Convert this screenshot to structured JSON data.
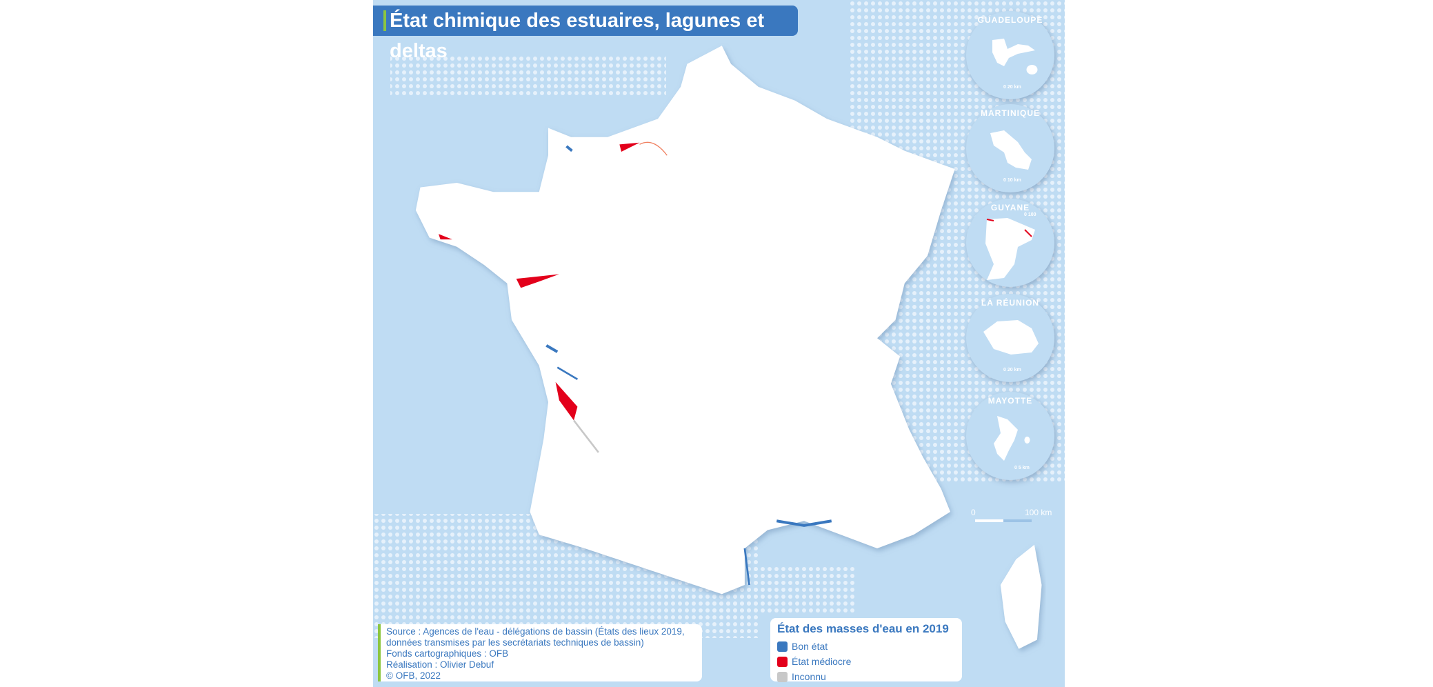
{
  "title": "État chimique des estuaires, lagunes et deltas",
  "insets": [
    {
      "name": "GUADELOUPE",
      "scale": "0    20 km"
    },
    {
      "name": "MARTINIQUE",
      "scale": "0    10 km"
    },
    {
      "name": "GUYANE",
      "scale": "0    100"
    },
    {
      "name": "LA RÉUNION",
      "scale": "0    20 km"
    },
    {
      "name": "MAYOTTE",
      "scale": "0    5 km"
    }
  ],
  "scale_bar": {
    "start": "0",
    "end": "100 km"
  },
  "source": {
    "lines": [
      "Source : Agences de l'eau - délégations de bassin (États des lieux 2019,",
      "données transmises par les secrétariats techniques de bassin)",
      "Fonds cartographiques : OFB",
      "Réalisation : Olivier Debuf",
      "© OFB, 2022"
    ]
  },
  "legend": {
    "title": "État des masses d'eau en 2019",
    "items": [
      {
        "label": "Bon état",
        "color": "#3a78bf"
      },
      {
        "label": "État médiocre",
        "color": "#e3001b"
      },
      {
        "label": "Inconnu",
        "color": "#c8c8c8"
      }
    ]
  },
  "colors": {
    "sea": "#bfdcf3",
    "land": "#ffffff",
    "accent": "#3a78bf",
    "green": "#8cc63f"
  }
}
